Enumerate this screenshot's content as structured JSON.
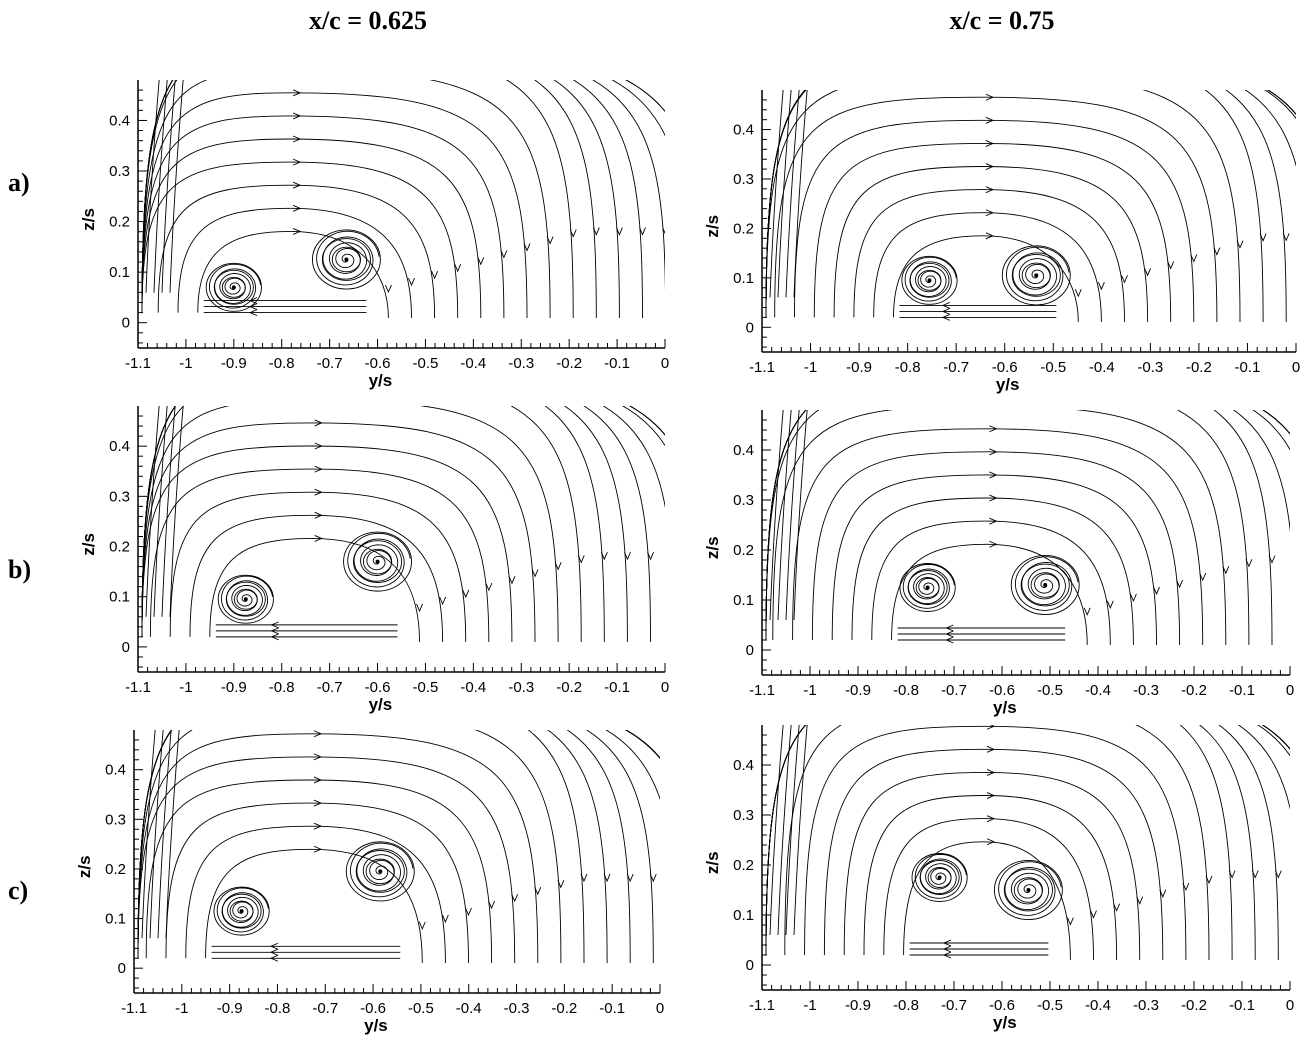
{
  "column_titles": [
    "x/c = 0.625",
    "x/c = 0.75"
  ],
  "row_labels": [
    "a)",
    "b)",
    "c)"
  ],
  "chart_data": [
    {
      "type": "scatter",
      "panel": "a) x/c = 0.625",
      "xlabel": "y/s",
      "ylabel": "z/s",
      "xlim": [
        -1.1,
        0
      ],
      "ylim": [
        -0.05,
        0.48
      ],
      "xticks": [
        "-1.1",
        "-1",
        "-0.9",
        "-0.8",
        "-0.7",
        "-0.6",
        "-0.5",
        "-0.4",
        "-0.3",
        "-0.2",
        "-0.1",
        "0"
      ],
      "yticks": [
        "0",
        "0.1",
        "0.2",
        "0.3",
        "0.4"
      ],
      "vortices": [
        {
          "y": -0.9,
          "z": 0.07,
          "sense": "cw"
        },
        {
          "y": -0.665,
          "z": 0.125,
          "sense": "cw"
        }
      ]
    },
    {
      "type": "scatter",
      "panel": "a) x/c = 0.75",
      "xlabel": "y/s",
      "ylabel": "z/s",
      "xlim": [
        -1.1,
        0
      ],
      "ylim": [
        -0.05,
        0.48
      ],
      "xticks": [
        "-1.1",
        "-1",
        "-0.9",
        "-0.8",
        "-0.7",
        "-0.6",
        "-0.5",
        "-0.4",
        "-0.3",
        "-0.2",
        "-0.1",
        "0"
      ],
      "yticks": [
        "0",
        "0.1",
        "0.2",
        "0.3",
        "0.4"
      ],
      "vortices": [
        {
          "y": -0.755,
          "z": 0.095,
          "sense": "cw"
        },
        {
          "y": -0.535,
          "z": 0.105,
          "sense": "cw"
        }
      ]
    },
    {
      "type": "scatter",
      "panel": "b) x/c = 0.625",
      "xlabel": "y/s",
      "ylabel": "z/s",
      "xlim": [
        -1.1,
        0
      ],
      "ylim": [
        -0.05,
        0.48
      ],
      "xticks": [
        "-1.1",
        "-1",
        "-0.9",
        "-0.8",
        "-0.7",
        "-0.6",
        "-0.5",
        "-0.4",
        "-0.3",
        "-0.2",
        "-0.1",
        "0"
      ],
      "yticks": [
        "0",
        "0.1",
        "0.2",
        "0.3",
        "0.4"
      ],
      "vortices": [
        {
          "y": -0.875,
          "z": 0.095,
          "sense": "cw"
        },
        {
          "y": -0.6,
          "z": 0.17,
          "sense": "cw"
        }
      ]
    },
    {
      "type": "scatter",
      "panel": "b) x/c = 0.75",
      "xlabel": "y/s",
      "ylabel": "z/s",
      "xlim": [
        -1.1,
        0
      ],
      "ylim": [
        -0.05,
        0.48
      ],
      "xticks": [
        "-1.1",
        "-1",
        "-0.9",
        "-0.8",
        "-0.7",
        "-0.6",
        "-0.5",
        "-0.4",
        "-0.3",
        "-0.2",
        "-0.1",
        "0"
      ],
      "yticks": [
        "0",
        "0.1",
        "0.2",
        "0.3",
        "0.4"
      ],
      "vortices": [
        {
          "y": -0.755,
          "z": 0.125,
          "sense": "cw"
        },
        {
          "y": -0.51,
          "z": 0.13,
          "sense": "cw"
        }
      ]
    },
    {
      "type": "scatter",
      "panel": "c) x/c = 0.625",
      "xlabel": "y/s",
      "ylabel": "z/s",
      "xlim": [
        -1.1,
        0
      ],
      "ylim": [
        -0.05,
        0.48
      ],
      "xticks": [
        "-1.1",
        "-1",
        "-0.9",
        "-0.8",
        "-0.7",
        "-0.6",
        "-0.5",
        "-0.4",
        "-0.3",
        "-0.2",
        "-0.1",
        "0"
      ],
      "yticks": [
        "0",
        "0.1",
        "0.2",
        "0.3",
        "0.4"
      ],
      "vortices": [
        {
          "y": -0.875,
          "z": 0.115,
          "sense": "cw"
        },
        {
          "y": -0.585,
          "z": 0.195,
          "sense": "cw"
        }
      ]
    },
    {
      "type": "scatter",
      "panel": "c) x/c = 0.75",
      "xlabel": "y/s",
      "ylabel": "z/s",
      "xlim": [
        -1.1,
        0
      ],
      "ylim": [
        -0.05,
        0.48
      ],
      "xticks": [
        "-1.1",
        "-1",
        "-0.9",
        "-0.8",
        "-0.7",
        "-0.6",
        "-0.5",
        "-0.4",
        "-0.3",
        "-0.2",
        "-0.1",
        "0"
      ],
      "yticks": [
        "0",
        "0.1",
        "0.2",
        "0.3",
        "0.4"
      ],
      "vortices": [
        {
          "y": -0.73,
          "z": 0.175,
          "sense": "cw"
        },
        {
          "y": -0.545,
          "z": 0.15,
          "sense": "cw"
        }
      ]
    }
  ]
}
